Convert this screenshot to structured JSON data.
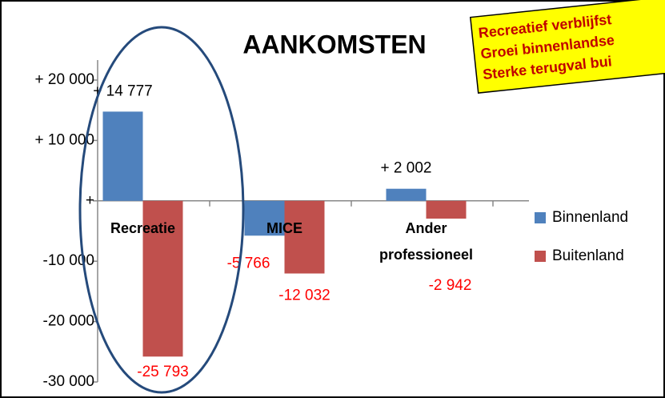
{
  "chart_data": {
    "type": "bar",
    "title": "AANKOMSTEN",
    "annotation": [
      "Recreatief verblijfst",
      "Groei binnenlandse",
      "Sterke terugval bui"
    ],
    "categories": [
      "Recreatie",
      "MICE",
      "Ander professioneel"
    ],
    "series": [
      {
        "name": "Binnenland",
        "color": "#4f81bd",
        "values": [
          14777,
          -5766,
          2002
        ],
        "value_labels": [
          "+ 14 777",
          "-5 766",
          "+ 2 002"
        ]
      },
      {
        "name": "Buitenland",
        "color": "#c0504d",
        "values": [
          -25793,
          -12032,
          -2942
        ],
        "value_labels": [
          "-25 793",
          "-12 032",
          "-2 942"
        ]
      }
    ],
    "ylim": [
      -30000,
      20000
    ],
    "yticks": [
      {
        "value": -30000,
        "label": "-30 000"
      },
      {
        "value": -20000,
        "label": "-20 000"
      },
      {
        "value": -10000,
        "label": "-10 000"
      },
      {
        "value": 0,
        "label": "+"
      },
      {
        "value": 10000,
        "label": "+ 10 000"
      },
      {
        "value": 20000,
        "label": "+ 20 000"
      }
    ],
    "legend": "right"
  }
}
